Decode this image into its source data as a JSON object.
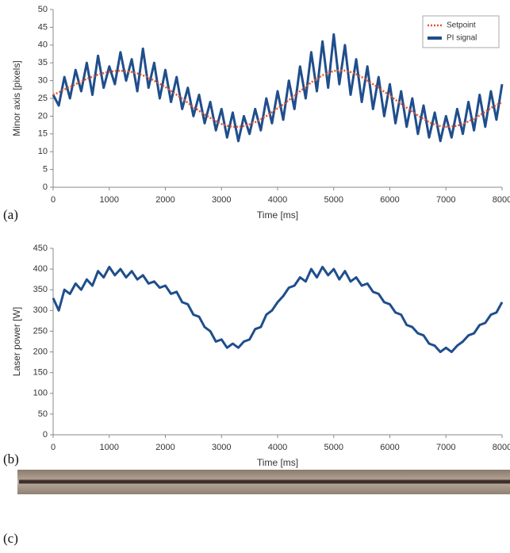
{
  "chart_data": [
    {
      "type": "line",
      "xlabel": "Time [ms]",
      "ylabel": "Minor axis [pixels]",
      "xlim": [
        0,
        8000
      ],
      "xticks": [
        0,
        1000,
        2000,
        3000,
        4000,
        5000,
        6000,
        7000,
        8000
      ],
      "ylim": [
        0,
        50
      ],
      "yticks": [
        0,
        5,
        10,
        15,
        20,
        25,
        30,
        35,
        40,
        45,
        50
      ],
      "legend": "upper right",
      "grid": false,
      "x": [
        0,
        100,
        200,
        300,
        400,
        500,
        600,
        700,
        800,
        900,
        1000,
        1100,
        1200,
        1300,
        1400,
        1500,
        1600,
        1700,
        1800,
        1900,
        2000,
        2100,
        2200,
        2300,
        2400,
        2500,
        2600,
        2700,
        2800,
        2900,
        3000,
        3100,
        3200,
        3300,
        3400,
        3500,
        3600,
        3700,
        3800,
        3900,
        4000,
        4100,
        4200,
        4300,
        4400,
        4500,
        4600,
        4700,
        4800,
        4900,
        5000,
        5100,
        5200,
        5300,
        5400,
        5500,
        5600,
        5700,
        5800,
        5900,
        6000,
        6100,
        6200,
        6300,
        6400,
        6500,
        6600,
        6700,
        6800,
        6900,
        7000,
        7100,
        7200,
        7300,
        7400,
        7500,
        7600,
        7700,
        7800,
        7900,
        8000
      ],
      "series": [
        {
          "name": "PI signal",
          "color": "#1f4e8c",
          "style": "solid",
          "values": [
            26,
            23,
            31,
            25,
            33,
            27,
            35,
            26,
            37,
            28,
            34,
            29,
            38,
            30,
            36,
            27,
            39,
            28,
            35,
            25,
            33,
            24,
            31,
            22,
            28,
            20,
            26,
            18,
            24,
            16,
            22,
            14,
            21,
            13,
            20,
            15,
            22,
            16,
            25,
            18,
            27,
            19,
            30,
            22,
            34,
            25,
            38,
            27,
            41,
            28,
            43,
            29,
            40,
            26,
            36,
            24,
            34,
            22,
            31,
            20,
            29,
            18,
            27,
            17,
            25,
            15,
            23,
            14,
            21,
            13,
            20,
            14,
            22,
            15,
            24,
            16,
            26,
            17,
            27,
            19,
            29
          ]
        },
        {
          "name": "Setpoint",
          "color": "#e8552b",
          "style": "dotted",
          "values": [
            26,
            26.7,
            27.5,
            28.2,
            29,
            29.8,
            30.5,
            31.1,
            31.7,
            32.1,
            32.5,
            32.7,
            32.8,
            32.6,
            32.4,
            32,
            31.5,
            30.8,
            30,
            29.1,
            28.2,
            27.1,
            26,
            24.9,
            23.8,
            22.6,
            21.5,
            20.5,
            19.5,
            18.6,
            17.8,
            17.3,
            17,
            17,
            17.2,
            17.7,
            18.3,
            19.1,
            20,
            21.1,
            22.2,
            23.3,
            24.5,
            25.7,
            27,
            28.2,
            29.5,
            30.5,
            31.5,
            32.2,
            32.7,
            32.9,
            32.8,
            32.4,
            31.8,
            31,
            30,
            29,
            28,
            26.9,
            25.8,
            24.6,
            23.5,
            22.4,
            21.3,
            20.2,
            19.2,
            18.3,
            17.6,
            17.2,
            17,
            17.1,
            17.3,
            17.8,
            18.5,
            19.3,
            20.2,
            21.2,
            22.3,
            23.1,
            24
          ]
        }
      ]
    },
    {
      "type": "line",
      "xlabel": "Time [ms]",
      "ylabel": "Laser power [W]",
      "xlim": [
        0,
        8000
      ],
      "xticks": [
        0,
        1000,
        2000,
        3000,
        4000,
        5000,
        6000,
        7000,
        8000
      ],
      "ylim": [
        0,
        450
      ],
      "yticks": [
        0,
        50,
        100,
        150,
        200,
        250,
        300,
        350,
        400,
        450
      ],
      "grid": false,
      "x": [
        0,
        100,
        200,
        300,
        400,
        500,
        600,
        700,
        800,
        900,
        1000,
        1100,
        1200,
        1300,
        1400,
        1500,
        1600,
        1700,
        1800,
        1900,
        2000,
        2100,
        2200,
        2300,
        2400,
        2500,
        2600,
        2700,
        2800,
        2900,
        3000,
        3100,
        3200,
        3300,
        3400,
        3500,
        3600,
        3700,
        3800,
        3900,
        4000,
        4100,
        4200,
        4300,
        4400,
        4500,
        4600,
        4700,
        4800,
        4900,
        5000,
        5100,
        5200,
        5300,
        5400,
        5500,
        5600,
        5700,
        5800,
        5900,
        6000,
        6100,
        6200,
        6300,
        6400,
        6500,
        6600,
        6700,
        6800,
        6900,
        7000,
        7100,
        7200,
        7300,
        7400,
        7500,
        7600,
        7700,
        7800,
        7900,
        8000
      ],
      "series": [
        {
          "color": "#1f4e8c",
          "style": "solid",
          "values": [
            330,
            300,
            350,
            340,
            365,
            350,
            375,
            360,
            395,
            380,
            405,
            385,
            400,
            380,
            395,
            375,
            385,
            365,
            370,
            355,
            360,
            340,
            345,
            320,
            315,
            290,
            285,
            260,
            250,
            225,
            230,
            210,
            220,
            210,
            225,
            230,
            255,
            260,
            290,
            300,
            320,
            335,
            355,
            360,
            380,
            370,
            400,
            380,
            405,
            385,
            400,
            375,
            395,
            370,
            380,
            360,
            365,
            345,
            340,
            320,
            315,
            295,
            290,
            265,
            260,
            245,
            240,
            220,
            215,
            200,
            210,
            200,
            215,
            225,
            240,
            245,
            265,
            270,
            290,
            295,
            320
          ]
        }
      ]
    }
  ],
  "panel_labels": [
    "(a)",
    "(b)",
    "(c)"
  ]
}
